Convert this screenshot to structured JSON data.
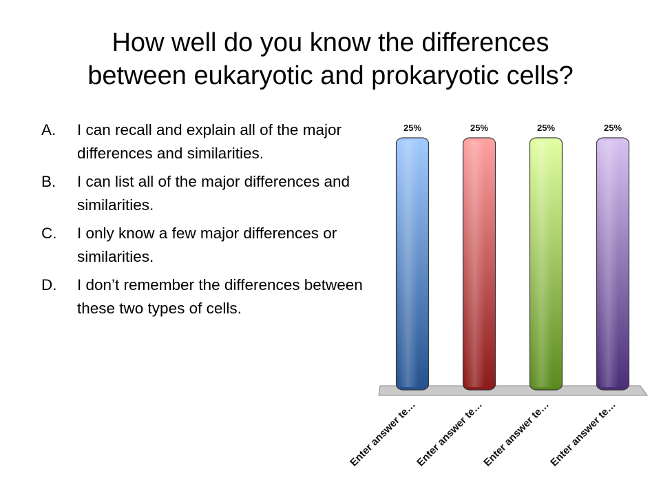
{
  "slide": {
    "title_line1": "How well do you know the differences",
    "title_line2": "between eukaryotic and prokaryotic cells?"
  },
  "options": [
    {
      "letter": "A.",
      "text": "I can recall and explain all of the major differences and similarities."
    },
    {
      "letter": "B.",
      "text": "I can list all of the major differences and similarities."
    },
    {
      "letter": "C.",
      "text": "I only know a few major differences or similarities."
    },
    {
      "letter": "D.",
      "text": "I don’t remember the differences between these two types of cells."
    }
  ],
  "chart_data": {
    "type": "bar",
    "categories": [
      "Enter answer te…",
      "Enter answer te…",
      "Enter answer te…",
      "Enter answer te…"
    ],
    "values": [
      25,
      25,
      25,
      25
    ],
    "value_labels": [
      "25%",
      "25%",
      "25%",
      "25%"
    ],
    "unit": "%",
    "ylim": [
      0,
      25
    ],
    "colors": [
      {
        "top": "#a2cbff",
        "bottom": "#24528f"
      },
      {
        "top": "#ffa2a2",
        "bottom": "#8c1a1a"
      },
      {
        "top": "#e2ffa2",
        "bottom": "#5a8a1e"
      },
      {
        "top": "#d8c2f2",
        "bottom": "#4a2d78"
      }
    ],
    "floor_color": "#c9c9c9",
    "grid": false,
    "legend": "none"
  }
}
